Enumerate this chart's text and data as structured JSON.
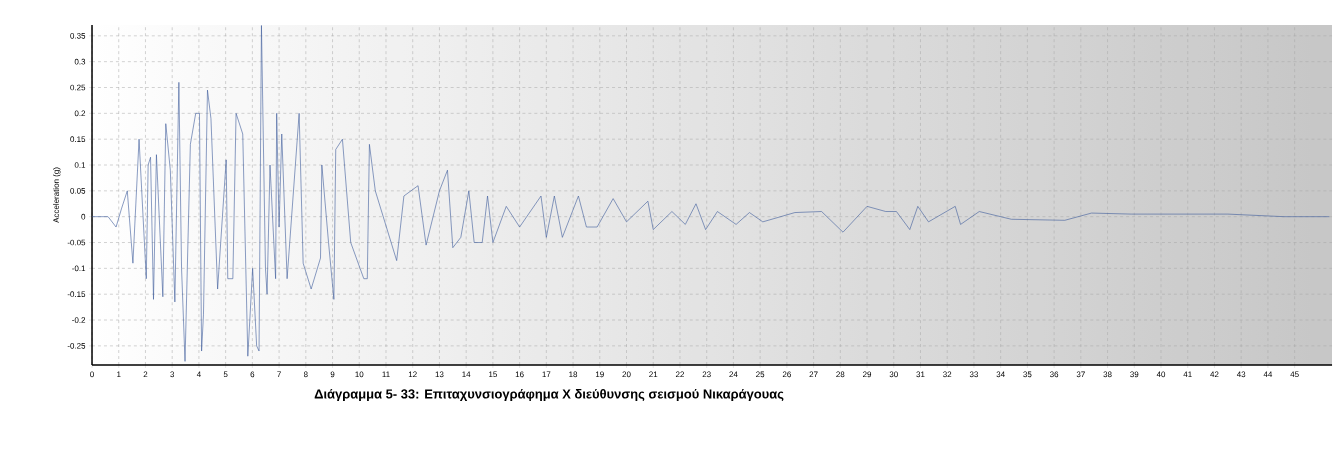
{
  "chart_data": {
    "type": "line",
    "title": "Διάγραμμα 5- 33: Επιταχυνσιογράφημα Χ διεύθυνσης σεισμού Νικαράγουας",
    "ylabel": "Acceleration (g)",
    "x": [
      0,
      0.6,
      0.9,
      1.1,
      1.32,
      1.53,
      1.76,
      2.03,
      2.1,
      2.19,
      2.3,
      2.41,
      2.65,
      2.76,
      2.93,
      3.1,
      3.25,
      3.35,
      3.48,
      3.68,
      3.88,
      4.02,
      4.1,
      4.17,
      4.32,
      4.45,
      4.7,
      5.02,
      5.08,
      5.27,
      5.39,
      5.64,
      5.83,
      6.01,
      6.16,
      6.25,
      6.34,
      6.49,
      6.55,
      6.66,
      6.87,
      6.91,
      7.0,
      7.1,
      7.3,
      7.75,
      7.9,
      8.2,
      8.55,
      8.6,
      8.85,
      9.05,
      9.12,
      9.37,
      9.68,
      10.17,
      10.3,
      10.38,
      10.6,
      11.4,
      11.67,
      12.2,
      12.5,
      13.0,
      13.3,
      13.5,
      13.8,
      14.1,
      14.3,
      14.6,
      14.8,
      15.0,
      15.5,
      16.0,
      16.8,
      17.0,
      17.3,
      17.6,
      18.2,
      18.5,
      18.9,
      19.5,
      20.0,
      20.8,
      21.0,
      21.7,
      22.2,
      22.6,
      22.96,
      23.4,
      24.1,
      24.6,
      25.1,
      26.3,
      27.3,
      28.1,
      29.0,
      29.7,
      30.1,
      30.6,
      30.9,
      31.3,
      32.3,
      32.5,
      33.2,
      34.4,
      36.4,
      37.4,
      38.9,
      42.5,
      44.6,
      46.3
    ],
    "values": [
      0,
      0,
      -0.02,
      0.015,
      0.05,
      -0.09,
      0.15,
      -0.12,
      0.1,
      0.115,
      -0.16,
      0.12,
      -0.155,
      0.18,
      0.09,
      -0.165,
      0.26,
      -0.1,
      -0.28,
      0.14,
      0.2,
      0.2,
      -0.26,
      -0.19,
      0.245,
      0.19,
      -0.14,
      0.11,
      -0.12,
      -0.12,
      0.2,
      0.16,
      -0.27,
      -0.1,
      -0.25,
      -0.26,
      0.37,
      -0.1,
      -0.15,
      0.1,
      -0.12,
      0.2,
      -0.02,
      0.16,
      -0.12,
      0.2,
      -0.09,
      -0.14,
      -0.08,
      0.1,
      -0.05,
      -0.16,
      0.13,
      0.15,
      -0.05,
      -0.12,
      -0.12,
      0.14,
      0.05,
      -0.085,
      0.04,
      0.06,
      -0.055,
      0.05,
      0.09,
      -0.06,
      -0.04,
      0.05,
      -0.05,
      -0.05,
      0.04,
      -0.05,
      0.02,
      -0.02,
      0.04,
      -0.04,
      0.04,
      -0.04,
      0.04,
      -0.02,
      -0.02,
      0.035,
      -0.01,
      0.03,
      -0.025,
      0.01,
      -0.015,
      0.025,
      -0.025,
      0.01,
      -0.015,
      0.008,
      -0.01,
      0.008,
      0.01,
      -0.03,
      0.02,
      0.01,
      0.01,
      -0.025,
      0.02,
      -0.01,
      0.02,
      -0.015,
      0.01,
      -0.005,
      -0.007,
      0.007,
      0.005,
      0.005,
      0,
      0
    ],
    "color": "#3d5b9b",
    "xlim": [
      0,
      46.4
    ],
    "ylim": [
      -0.287,
      0.371
    ],
    "xticks": [
      0,
      1,
      2,
      3,
      4,
      5,
      6,
      7,
      8,
      9,
      10,
      11,
      12,
      13,
      14,
      15,
      16,
      17,
      18,
      19,
      20,
      21,
      22,
      23,
      24,
      25,
      26,
      27,
      28,
      29,
      30,
      31,
      32,
      33,
      34,
      35,
      36,
      37,
      38,
      39,
      40,
      41,
      42,
      43,
      44,
      45
    ],
    "yticks": [
      -0.25,
      -0.2,
      -0.15,
      -0.1,
      -0.05,
      0,
      0.05,
      0.1,
      0.15,
      0.2,
      0.25,
      0.3,
      0.35
    ],
    "grid": true,
    "line_style": "solid",
    "marker": "none"
  }
}
